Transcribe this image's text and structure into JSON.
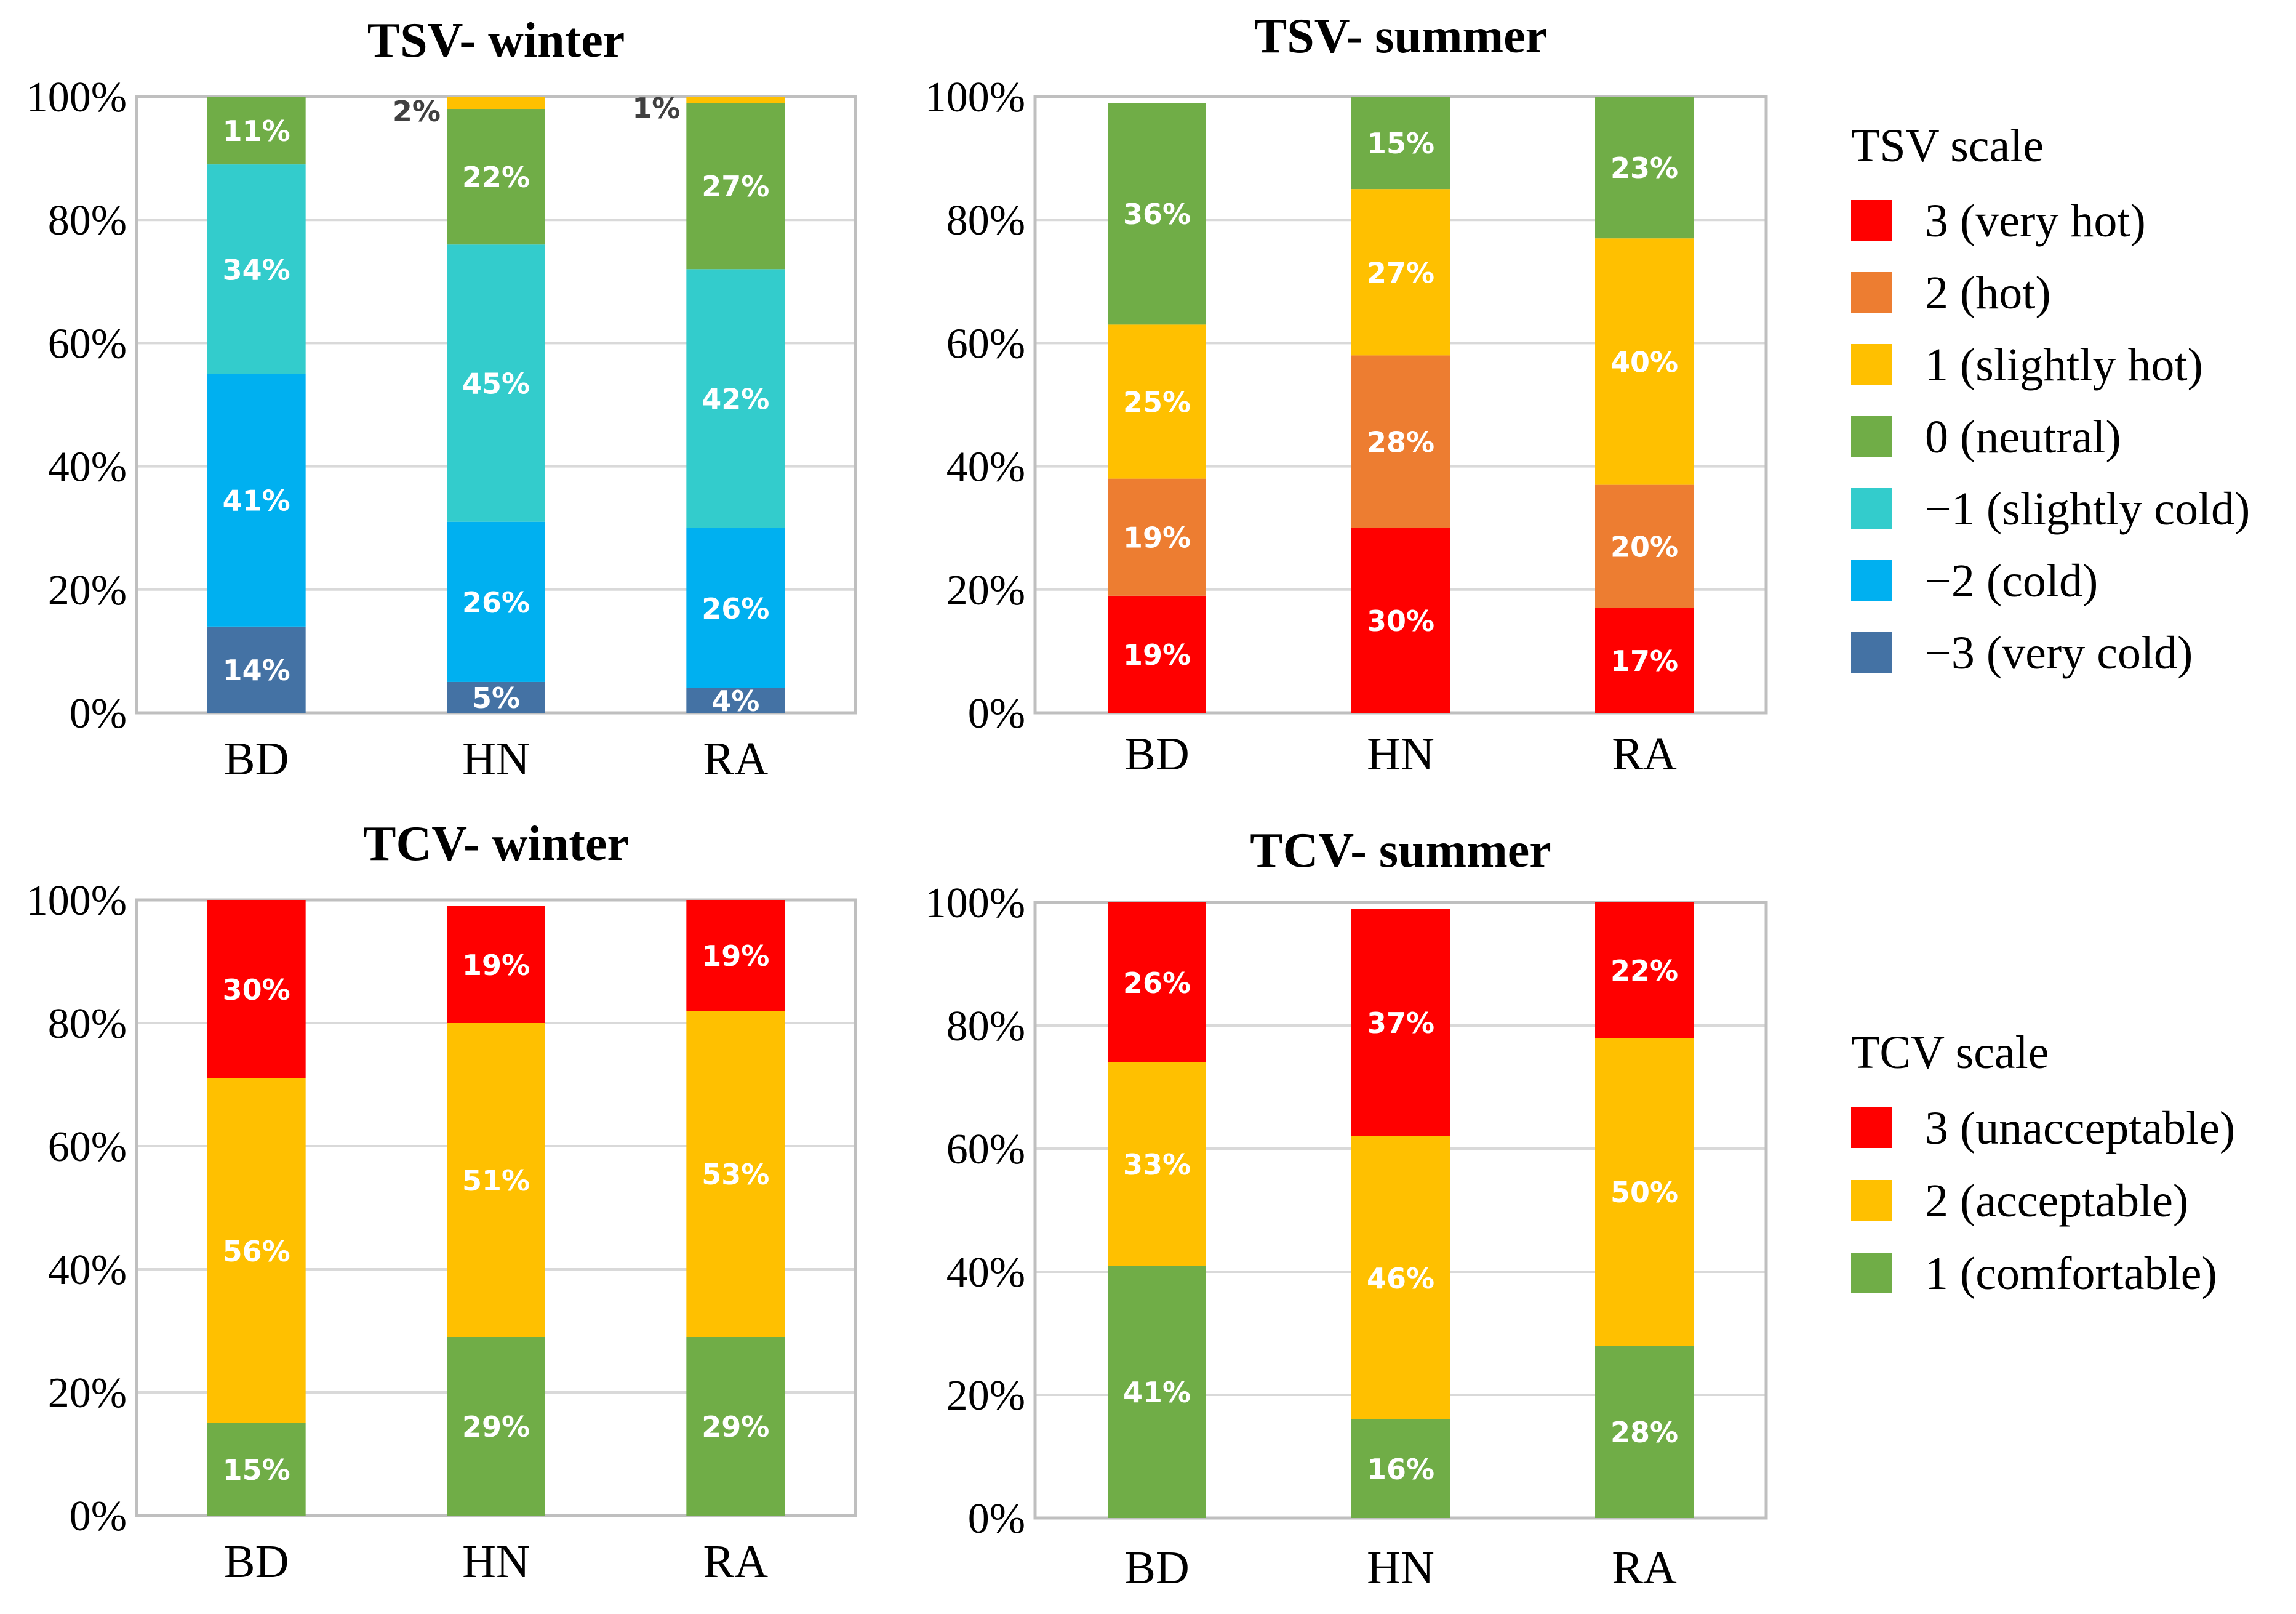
{
  "chart_data": [
    {
      "type": "bar",
      "stacked": true,
      "title": "TSV- winter",
      "categories": [
        "BD",
        "HN",
        "RA"
      ],
      "yticks": [
        "0%",
        "20%",
        "40%",
        "60%",
        "80%",
        "100%"
      ],
      "ylim": [
        0,
        100
      ],
      "grid": true,
      "series": [
        {
          "name": "−3 (very cold)",
          "color": "#4472A4",
          "values": [
            14,
            5,
            4
          ],
          "labels": [
            "14%",
            "5%",
            "4%"
          ]
        },
        {
          "name": "−2 (cold)",
          "color": "#00B0F0",
          "values": [
            41,
            26,
            26
          ],
          "labels": [
            "41%",
            "26%",
            "26%"
          ]
        },
        {
          "name": "−1 (slightly cold)",
          "color": "#33CCCC",
          "values": [
            34,
            45,
            42
          ],
          "labels": [
            "34%",
            "45%",
            "42%"
          ]
        },
        {
          "name": "0 (neutral)",
          "color": "#70AD47",
          "values": [
            11,
            22,
            27
          ],
          "labels": [
            "11%",
            "22%",
            "27%"
          ]
        },
        {
          "name": "1 (slightly hot)",
          "color": "#FFC000",
          "values": [
            0,
            2,
            1
          ],
          "labels": [
            "",
            "2%",
            "1%"
          ]
        }
      ]
    },
    {
      "type": "bar",
      "stacked": true,
      "title": "TSV- summer",
      "categories": [
        "BD",
        "HN",
        "RA"
      ],
      "yticks": [
        "0%",
        "20%",
        "40%",
        "60%",
        "80%",
        "100%"
      ],
      "ylim": [
        0,
        100
      ],
      "grid": true,
      "series": [
        {
          "name": "3 (very hot)",
          "color": "#FF0000",
          "values": [
            19,
            30,
            17
          ],
          "labels": [
            "19%",
            "30%",
            "17%"
          ]
        },
        {
          "name": "2 (hot)",
          "color": "#ED7D31",
          "values": [
            19,
            28,
            20
          ],
          "labels": [
            "19%",
            "28%",
            "20%"
          ]
        },
        {
          "name": "1 (slightly hot)",
          "color": "#FFC000",
          "values": [
            25,
            27,
            40
          ],
          "labels": [
            "25%",
            "27%",
            "40%"
          ]
        },
        {
          "name": "0 (neutral)",
          "color": "#70AD47",
          "values": [
            36,
            15,
            23
          ],
          "labels": [
            "36%",
            "15%",
            "23%"
          ]
        }
      ]
    },
    {
      "type": "bar",
      "stacked": true,
      "title": "TCV- winter",
      "categories": [
        "BD",
        "HN",
        "RA"
      ],
      "yticks": [
        "0%",
        "20%",
        "40%",
        "60%",
        "80%",
        "100%"
      ],
      "ylim": [
        0,
        100
      ],
      "grid": true,
      "series": [
        {
          "name": "1 (comfortable)",
          "color": "#70AD47",
          "values": [
            15,
            29,
            29
          ],
          "labels": [
            "15%",
            "29%",
            "29%"
          ]
        },
        {
          "name": "2 (acceptable)",
          "color": "#FFC000",
          "values": [
            56,
            51,
            53
          ],
          "labels": [
            "56%",
            "51%",
            "53%"
          ]
        },
        {
          "name": "3 (unacceptable)",
          "color": "#FF0000",
          "values": [
            30,
            19,
            19
          ],
          "labels": [
            "30%",
            "19%",
            "19%"
          ]
        }
      ]
    },
    {
      "type": "bar",
      "stacked": true,
      "title": "TCV- summer",
      "categories": [
        "BD",
        "HN",
        "RA"
      ],
      "yticks": [
        "0%",
        "20%",
        "40%",
        "60%",
        "80%",
        "100%"
      ],
      "ylim": [
        0,
        100
      ],
      "grid": true,
      "series": [
        {
          "name": "1 (comfortable)",
          "color": "#70AD47",
          "values": [
            41,
            16,
            28
          ],
          "labels": [
            "41%",
            "16%",
            "28%"
          ]
        },
        {
          "name": "2 (acceptable)",
          "color": "#FFC000",
          "values": [
            33,
            46,
            50
          ],
          "labels": [
            "33%",
            "46%",
            "50%"
          ]
        },
        {
          "name": "3 (unacceptable)",
          "color": "#FF0000",
          "values": [
            26,
            37,
            22
          ],
          "labels": [
            "26%",
            "37%",
            "22%"
          ]
        }
      ]
    }
  ],
  "legends": [
    {
      "title": "TSV scale",
      "items": [
        {
          "label": "3 (very hot)",
          "color": "#FF0000"
        },
        {
          "label": "2 (hot)",
          "color": "#ED7D31"
        },
        {
          "label": "1 (slightly hot)",
          "color": "#FFC000"
        },
        {
          "label": "0 (neutral)",
          "color": "#70AD47"
        },
        {
          "label": "−1 (slightly cold)",
          "color": "#33CCCC"
        },
        {
          "label": "−2 (cold)",
          "color": "#00B0F0"
        },
        {
          "label": "−3 (very cold)",
          "color": "#4472A4"
        }
      ]
    },
    {
      "title": "TCV scale",
      "items": [
        {
          "label": "3 (unacceptable)",
          "color": "#FF0000"
        },
        {
          "label": "2 (acceptable)",
          "color": "#FFC000"
        },
        {
          "label": "1 (comfortable)",
          "color": "#70AD47"
        }
      ]
    }
  ]
}
